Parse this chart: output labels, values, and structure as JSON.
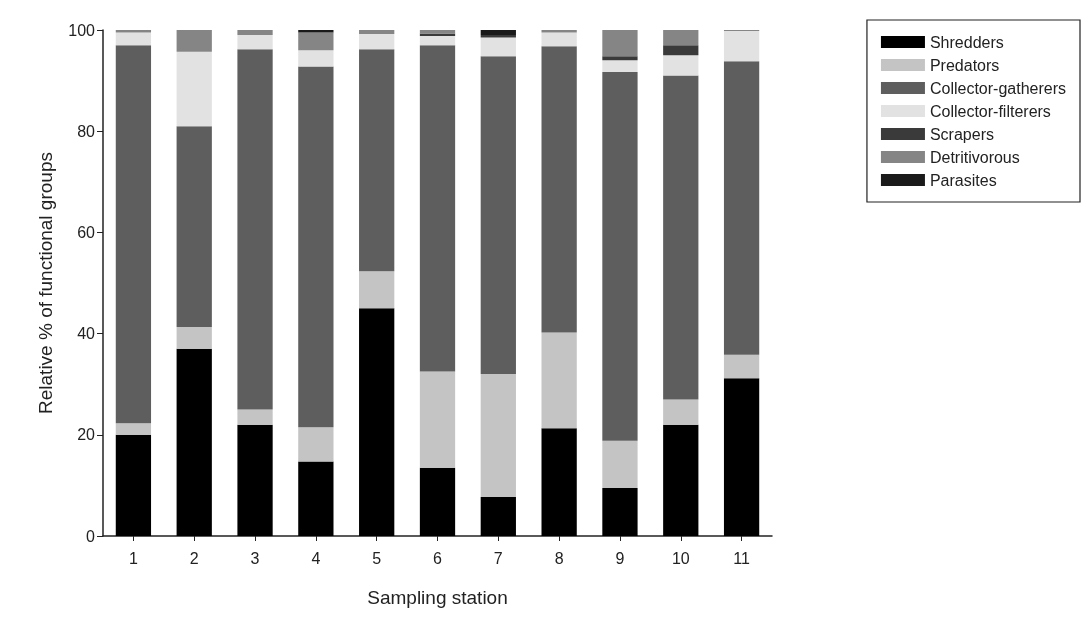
{
  "chart_data": {
    "type": "bar",
    "stacked": true,
    "xlabel": "Sampling station",
    "ylabel": "Relative % of functional groups",
    "categories": [
      "1",
      "2",
      "3",
      "4",
      "5",
      "6",
      "7",
      "8",
      "9",
      "10",
      "11"
    ],
    "series": [
      {
        "name": "Shredders",
        "color": "#000000",
        "values": [
          20,
          37,
          22,
          14.7,
          45,
          13.5,
          7.7,
          21.3,
          9.5,
          22,
          31.2
        ]
      },
      {
        "name": "Predators",
        "color": "#c4c4c4",
        "values": [
          2.3,
          4.3,
          3,
          6.8,
          7.3,
          19,
          24.3,
          18.9,
          9.3,
          5,
          4.6
        ]
      },
      {
        "name": "Collector-gatherers",
        "color": "#5e5e5e",
        "values": [
          74.7,
          39.7,
          71.2,
          71.3,
          43.9,
          64.5,
          62.8,
          56.6,
          72.9,
          64,
          58
        ]
      },
      {
        "name": "Collector-filterers",
        "color": "#e2e2e2",
        "values": [
          2.5,
          14.7,
          2.8,
          3.2,
          3,
          1.8,
          3.7,
          2.7,
          2.3,
          4,
          6
        ]
      },
      {
        "name": "Scrapers",
        "color": "#3a3a3a",
        "values": [
          0,
          0,
          0,
          0,
          0,
          0.5,
          0.5,
          0,
          0.8,
          2,
          0
        ]
      },
      {
        "name": "Detritivorous",
        "color": "#858585",
        "values": [
          0.5,
          4.3,
          1,
          3.5,
          0.8,
          0.7,
          0,
          0.5,
          5.2,
          3,
          0.2
        ]
      },
      {
        "name": "Parasites",
        "color": "#1a1a1a",
        "values": [
          0,
          0,
          0,
          0.5,
          0,
          0,
          1,
          0,
          0,
          0,
          0
        ]
      }
    ],
    "ylim": [
      0,
      100
    ],
    "yticks": [
      0,
      20,
      40,
      60,
      80,
      100
    ],
    "grid": false,
    "legend": "top right"
  }
}
